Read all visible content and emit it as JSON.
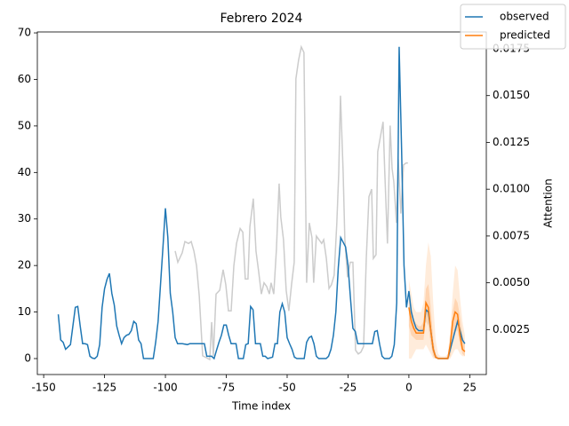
{
  "chart_data": {
    "type": "line",
    "title": "Febrero 2024",
    "xlabel": "Time index",
    "y2label": "Attention",
    "xlim": [
      -152.6,
      31.8
    ],
    "xticks": [
      -150,
      -125,
      -100,
      -75,
      -50,
      -25,
      0,
      25
    ],
    "ylim": [
      -3.43,
      70.2
    ],
    "yticks": [
      0,
      10,
      20,
      30,
      40,
      50,
      60,
      70
    ],
    "y2lim": [
      0.0001,
      0.0184
    ],
    "y2ticks": [
      0.0025,
      {
        "value": 0.005,
        "label": "0.0050"
      },
      0.0075,
      {
        "value": 0.01,
        "label": "0.0100"
      },
      0.0125,
      {
        "value": 0.015,
        "label": "0.0150"
      },
      0.0175
    ],
    "legend": "upper right",
    "attention": {
      "color": "#cccccc",
      "axis": "y2",
      "x": [
        -96.0,
        -94.9,
        -93.1,
        -92.0,
        -90.5,
        -89.4,
        -88.3,
        -87.2,
        -86.1,
        -84.7,
        -83.2,
        -81.8,
        -81.0,
        -80.3,
        -79.2,
        -77.7,
        -76.3,
        -75.2,
        -74.1,
        -73.0,
        -71.9,
        -70.8,
        -69.3,
        -68.2,
        -67.2,
        -66.1,
        -65.3,
        -63.9,
        -62.8,
        -61.7,
        -60.6,
        -59.5,
        -58.4,
        -57.3,
        -56.6,
        -55.5,
        -54.4,
        -53.3,
        -52.6,
        -51.5,
        -50.4,
        -49.3,
        -48.2,
        -47.1,
        -46.4,
        -45.3,
        -44.2,
        -43.1,
        -42.0,
        -40.9,
        -39.8,
        -39.1,
        -38.0,
        -36.9,
        -35.8,
        -35.0,
        -33.9,
        -32.8,
        -31.8,
        -30.7,
        -29.6,
        -28.8,
        -28.1,
        -27.0,
        -26.3,
        -25.2,
        -24.1,
        -23.0,
        -21.9,
        -20.8,
        -19.7,
        -18.6,
        -17.5,
        -16.4,
        -15.3,
        -14.6,
        -13.5,
        -12.8,
        -11.7,
        -10.6,
        -9.9,
        -8.8,
        -7.7,
        -6.9,
        -6.2,
        -5.1,
        -4.4,
        -3.3,
        -2.2,
        -1.1,
        -0.4
      ],
      "values": [
        0.0067,
        0.0061,
        0.0066,
        0.0072,
        0.0071,
        0.0072,
        0.0067,
        0.0059,
        0.0043,
        0.0011,
        0.001,
        0.0009,
        0.0029,
        0.0011,
        0.0044,
        0.0046,
        0.0057,
        0.0049,
        0.0035,
        0.0035,
        0.0059,
        0.0071,
        0.0079,
        0.0077,
        0.0052,
        0.0052,
        0.008,
        0.0095,
        0.0067,
        0.0056,
        0.0044,
        0.005,
        0.0048,
        0.0044,
        0.005,
        0.0044,
        0.0068,
        0.0103,
        0.0085,
        0.0073,
        0.0046,
        0.0035,
        0.0049,
        0.0061,
        0.0159,
        0.0169,
        0.0176,
        0.0173,
        0.005,
        0.0082,
        0.0074,
        0.005,
        0.0075,
        0.0073,
        0.0071,
        0.0073,
        0.0063,
        0.0047,
        0.0049,
        0.0054,
        0.0082,
        0.0109,
        0.015,
        0.0109,
        0.0073,
        0.0053,
        0.0061,
        0.0061,
        0.0014,
        0.0012,
        0.0013,
        0.0016,
        0.0063,
        0.0096,
        0.01,
        0.0063,
        0.0065,
        0.012,
        0.0128,
        0.0136,
        0.0109,
        0.0071,
        0.0134,
        0.0111,
        0.0104,
        0.0082,
        0.0116,
        0.0087,
        0.0113,
        0.0114,
        0.0114
      ]
    },
    "bands": [
      {
        "color": "#ff7f0e",
        "opacity": 0.15,
        "x": [
          0,
          1,
          2,
          3,
          4,
          5,
          6,
          7,
          8,
          9,
          10,
          11,
          12,
          13,
          14,
          15,
          16,
          17,
          18,
          19,
          20,
          21,
          22,
          23
        ],
        "lower": [
          0,
          0,
          1,
          2,
          2,
          2,
          2,
          3,
          2,
          1,
          0,
          0,
          0,
          0,
          0,
          0,
          0,
          0,
          1,
          2,
          2,
          1,
          0.5,
          0.5
        ],
        "upper": [
          17,
          14,
          11,
          10,
          10,
          10,
          12,
          20,
          25,
          22,
          12,
          4,
          1,
          0.5,
          0.5,
          0.5,
          1,
          6,
          14,
          20,
          19,
          13,
          8,
          5
        ]
      },
      {
        "color": "#ff7f0e",
        "opacity": 0.2,
        "x": [
          0,
          1,
          2,
          3,
          4,
          5,
          6,
          7,
          8,
          9,
          10,
          11,
          12,
          13,
          14,
          15,
          16,
          17,
          18,
          19,
          20,
          21,
          22,
          23
        ],
        "lower": [
          7,
          5,
          4.5,
          4,
          4,
          4,
          4,
          8,
          7,
          3,
          0.5,
          0,
          0,
          0,
          0,
          0,
          0,
          0.5,
          4,
          6,
          6,
          3,
          1,
          0.5
        ],
        "upper": [
          14,
          11,
          8.5,
          7.5,
          7,
          7,
          8,
          15,
          16,
          11,
          4,
          1,
          0.3,
          0.2,
          0.2,
          0.2,
          0.5,
          4,
          10,
          13,
          12,
          9,
          5,
          3
        ]
      }
    ],
    "series": [
      {
        "name": "observed",
        "color": "#1f77b4",
        "x": [
          -144,
          -143,
          -142,
          -141,
          -140,
          -139,
          -137,
          -136,
          -135,
          -134,
          -133,
          -132,
          -131,
          -130,
          -129,
          -128,
          -127,
          -126,
          -125,
          -124,
          -123,
          -122,
          -121,
          -120,
          -119,
          -118,
          -117,
          -116,
          -115,
          -114,
          -113,
          -112,
          -111,
          -110,
          -109,
          -105,
          -104,
          -103,
          -102,
          -101,
          -100,
          -99,
          -98,
          -97,
          -96,
          -95,
          -93,
          -91,
          -90,
          -84,
          -83,
          -81,
          -80,
          -79,
          -78,
          -77,
          -76,
          -75,
          -74,
          -73,
          -71,
          -70,
          -68,
          -67,
          -66,
          -65,
          -64,
          -63,
          -61,
          -60,
          -59,
          -58,
          -56,
          -55,
          -54,
          -53,
          -52,
          -51,
          -50,
          -49,
          -48,
          -47,
          -46,
          -43,
          -42,
          -41,
          -40,
          -39,
          -38,
          -37,
          -34,
          -33,
          -32,
          -31,
          -30,
          -29,
          -28,
          -27,
          -26,
          -25,
          -24,
          -23,
          -22,
          -21,
          -15,
          -14,
          -13,
          -12,
          -11,
          -10,
          -8,
          -7,
          -6,
          -5,
          -4,
          -3,
          -2,
          -1,
          0,
          1,
          2,
          3,
          4,
          5,
          6,
          7,
          8,
          9,
          10,
          11,
          12,
          16,
          17,
          18,
          19,
          20,
          21,
          22,
          23
        ],
        "values": [
          9.5,
          4,
          3.5,
          2,
          2.5,
          3,
          11,
          11.2,
          7,
          3.2,
          3.2,
          3,
          0.5,
          0.1,
          0,
          0.5,
          3,
          11,
          15,
          17,
          18.3,
          14,
          11.5,
          7,
          5,
          3.2,
          4.5,
          5,
          5.2,
          6,
          8,
          7.5,
          4,
          3.2,
          0,
          0,
          3.5,
          8,
          16,
          24,
          32.3,
          26,
          14,
          10,
          4.5,
          3.2,
          3.2,
          3,
          3.2,
          3.2,
          0.5,
          0.5,
          0,
          1.8,
          3.5,
          5,
          7.2,
          7.2,
          5,
          3.2,
          3.2,
          0,
          0,
          3,
          3.2,
          11.2,
          10.5,
          3.2,
          3.2,
          0.5,
          0.5,
          0,
          0.3,
          3.2,
          3.2,
          10,
          11.8,
          10,
          4.5,
          3.2,
          2,
          0.3,
          0,
          0,
          3.5,
          4.5,
          4.8,
          3.2,
          0.5,
          0,
          0,
          0.5,
          2,
          5,
          10,
          19.5,
          26,
          25,
          24,
          20,
          13,
          6.5,
          5.8,
          3.2,
          3.2,
          5.8,
          6,
          3,
          0.5,
          0,
          0,
          0.5,
          3,
          12,
          67,
          45,
          20,
          11,
          14.5,
          10,
          8,
          6.5,
          6,
          6,
          6,
          10.5,
          10,
          6,
          2,
          0.3,
          0,
          0,
          2,
          4,
          6,
          8,
          6,
          4,
          3.2
        ]
      },
      {
        "name": "predicted",
        "color": "#ff7f0e",
        "x": [
          0,
          1,
          2,
          3,
          4,
          5,
          6,
          7,
          8,
          9,
          10,
          11,
          12,
          16,
          17,
          18,
          19,
          20,
          21,
          22,
          23
        ],
        "values": [
          11,
          8,
          6.5,
          5.5,
          5.5,
          5.5,
          5.5,
          12,
          11,
          6,
          2,
          0.3,
          0,
          0,
          3,
          8,
          10,
          9.5,
          5,
          2,
          1.5
        ]
      }
    ]
  }
}
